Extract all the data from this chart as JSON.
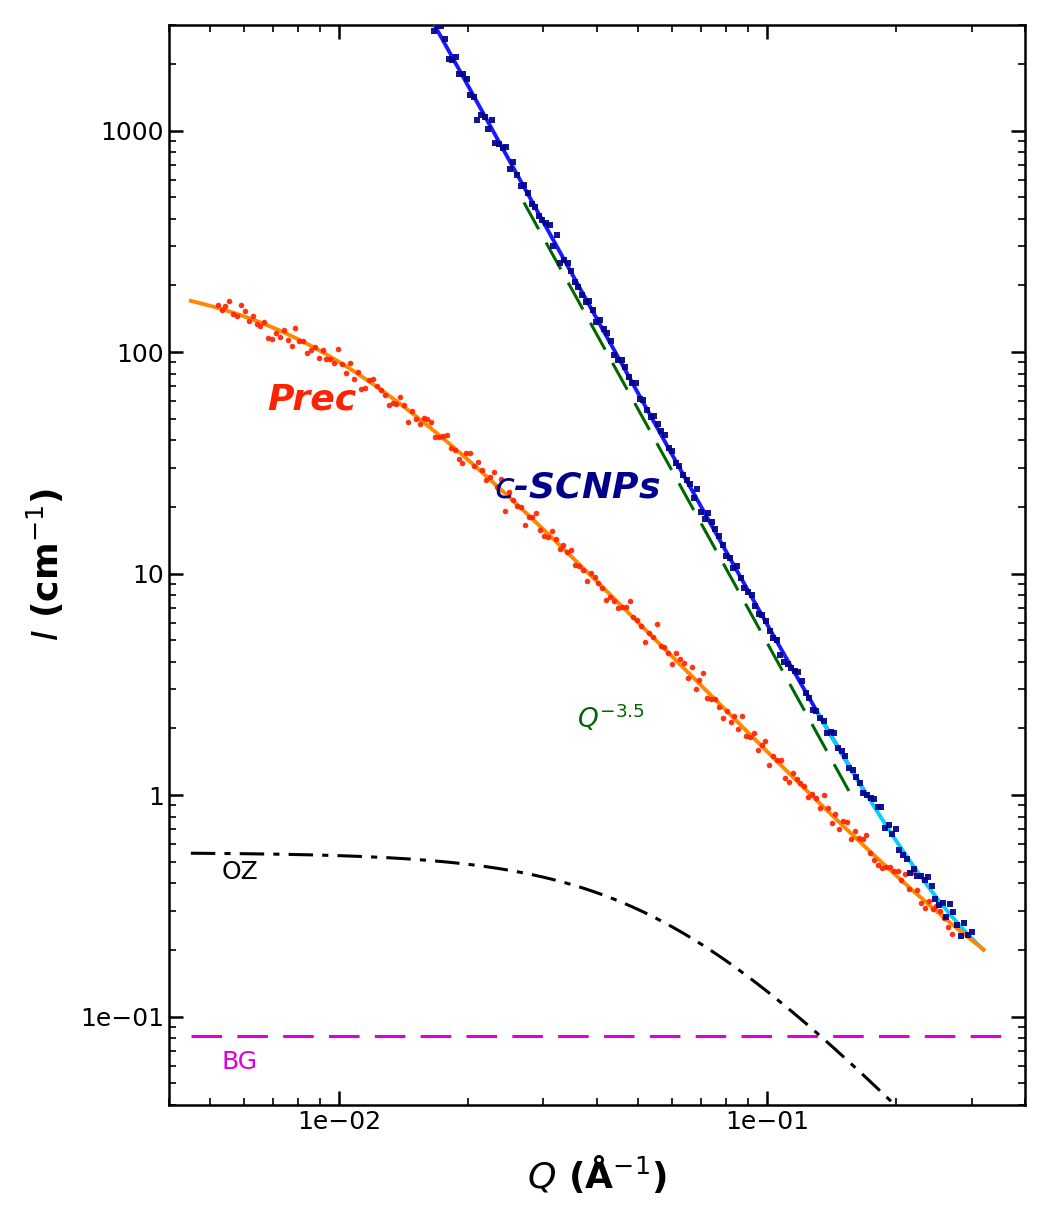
{
  "title": "",
  "xlabel": "$Q$ (Å$^{-1}$)",
  "ylabel": "$I$ (cm$^{-1}$)",
  "xlim": [
    0.004,
    0.4
  ],
  "ylim": [
    0.04,
    3000
  ],
  "bg_color": "#ffffff",
  "prec_color_dots": "#ff2200",
  "prec_color_line": "#ff8800",
  "scnp_color_dots": "#00008b",
  "scnp_color_line_dark": "#1a1aff",
  "scnp_color_line_cyan": "#00cfff",
  "oz_color": "#000000",
  "bg_line_color": "#dd00dd",
  "power_law_color": "#006600",
  "label_prec_color": "#ff2200",
  "label_scnp_color": "#00008b",
  "label_oz_color": "#000000",
  "label_bg_color": "#dd00dd",
  "label_power_law_color": "#006600",
  "BG_value": 0.082,
  "power_law_exp": -3.5
}
